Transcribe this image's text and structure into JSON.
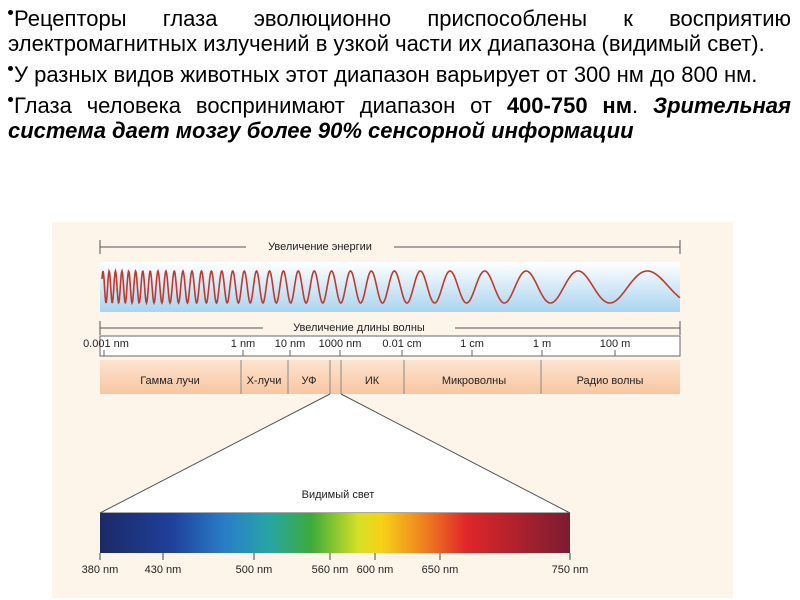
{
  "bullets": [
    {
      "parts": [
        {
          "text": "Рецепторы глаза эволюционно приспособлены к восприятию электромагнитных излучений в узкой части их диапазона (видимый свет)."
        }
      ]
    },
    {
      "parts": [
        {
          "text": "У разных видов животных этот диапазон варьирует от 300 нм до 800 нм."
        }
      ]
    },
    {
      "parts": [
        {
          "text": "Глаза человека воспринимают диапазон от "
        },
        {
          "text": "400-750 нм",
          "style": "bold"
        },
        {
          "text": ". "
        },
        {
          "text": "Зрительная система дает мозгу более 90% сенсорной информации",
          "style": "bold-italic"
        }
      ]
    }
  ],
  "diagram": {
    "energy_label": "Увеличение энергии",
    "wavelength_label": "Увеличение длины волны",
    "scale_labels": [
      "0.001 nm",
      "1 nm",
      "10 nm",
      "1000 nm",
      "0.01 cm",
      "1 cm",
      "1 m",
      "100 m"
    ],
    "bands": [
      "Гамма лучи",
      "X-лучи",
      "УФ",
      "ИК",
      "Микроволны",
      "Радио волны"
    ],
    "visible_label": "Видимый свет",
    "visible_ticks": [
      "380 nm",
      "430 nm",
      "500 nm",
      "560 nm",
      "600 nm",
      "650 nm",
      "750 nm"
    ]
  }
}
